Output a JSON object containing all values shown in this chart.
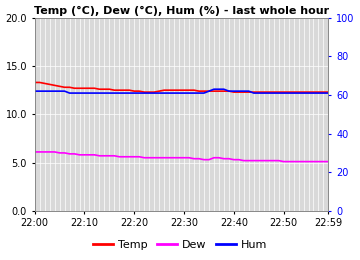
{
  "title": "Temp (°C), Dew (°C), Hum (%) - last whole hour",
  "x_labels": [
    "22:00",
    "22:10",
    "22:20",
    "22:30",
    "22:40",
    "22:50",
    "22:59"
  ],
  "x_ticks": [
    0,
    10,
    20,
    30,
    40,
    50,
    59
  ],
  "ylim_left": [
    0.0,
    20.0
  ],
  "ylim_right": [
    0,
    100
  ],
  "yticks_left": [
    0.0,
    5.0,
    10.0,
    15.0,
    20.0
  ],
  "yticks_right": [
    0,
    20,
    40,
    60,
    80,
    100
  ],
  "temp_color": "#ff0000",
  "dew_color": "#ff00ff",
  "hum_color": "#0000ff",
  "bg_color": "#d9d9d9",
  "fig_bg_color": "#ffffff",
  "grid_color": "#ffffff",
  "temp_values": [
    13.3,
    13.3,
    13.2,
    13.1,
    13.0,
    12.9,
    12.8,
    12.8,
    12.7,
    12.7,
    12.7,
    12.7,
    12.7,
    12.6,
    12.6,
    12.6,
    12.5,
    12.5,
    12.5,
    12.5,
    12.4,
    12.4,
    12.3,
    12.3,
    12.3,
    12.4,
    12.5,
    12.5,
    12.5,
    12.5,
    12.5,
    12.5,
    12.5,
    12.4,
    12.4,
    12.4,
    12.4,
    12.4,
    12.4,
    12.4,
    12.3,
    12.3,
    12.3,
    12.3,
    12.3,
    12.3,
    12.3,
    12.3,
    12.3,
    12.3,
    12.3,
    12.3,
    12.3,
    12.3,
    12.3,
    12.3,
    12.3,
    12.3,
    12.3,
    12.3
  ],
  "dew_values": [
    6.1,
    6.1,
    6.1,
    6.1,
    6.1,
    6.0,
    6.0,
    5.9,
    5.9,
    5.8,
    5.8,
    5.8,
    5.8,
    5.7,
    5.7,
    5.7,
    5.7,
    5.6,
    5.6,
    5.6,
    5.6,
    5.6,
    5.5,
    5.5,
    5.5,
    5.5,
    5.5,
    5.5,
    5.5,
    5.5,
    5.5,
    5.5,
    5.4,
    5.4,
    5.3,
    5.3,
    5.5,
    5.5,
    5.4,
    5.4,
    5.3,
    5.3,
    5.2,
    5.2,
    5.2,
    5.2,
    5.2,
    5.2,
    5.2,
    5.2,
    5.1,
    5.1,
    5.1,
    5.1,
    5.1,
    5.1,
    5.1,
    5.1,
    5.1,
    5.1
  ],
  "hum_values": [
    62,
    62,
    62,
    62,
    62,
    62,
    62,
    61,
    61,
    61,
    61,
    61,
    61,
    61,
    61,
    61,
    61,
    61,
    61,
    61,
    61,
    61,
    61,
    61,
    61,
    61,
    61,
    61,
    61,
    61,
    61,
    61,
    61,
    61,
    61,
    62,
    63,
    63,
    63,
    62,
    62,
    62,
    62,
    62,
    61,
    61,
    61,
    61,
    61,
    61,
    61,
    61,
    61,
    61,
    61,
    61,
    61,
    61,
    61,
    61
  ],
  "legend_labels": [
    "Temp",
    "Dew",
    "Hum"
  ],
  "legend_colors": [
    "#ff0000",
    "#ff00ff",
    "#0000ff"
  ],
  "line_width": 1.2,
  "tick_fontsize": 7,
  "title_fontsize": 8,
  "legend_fontsize": 8
}
